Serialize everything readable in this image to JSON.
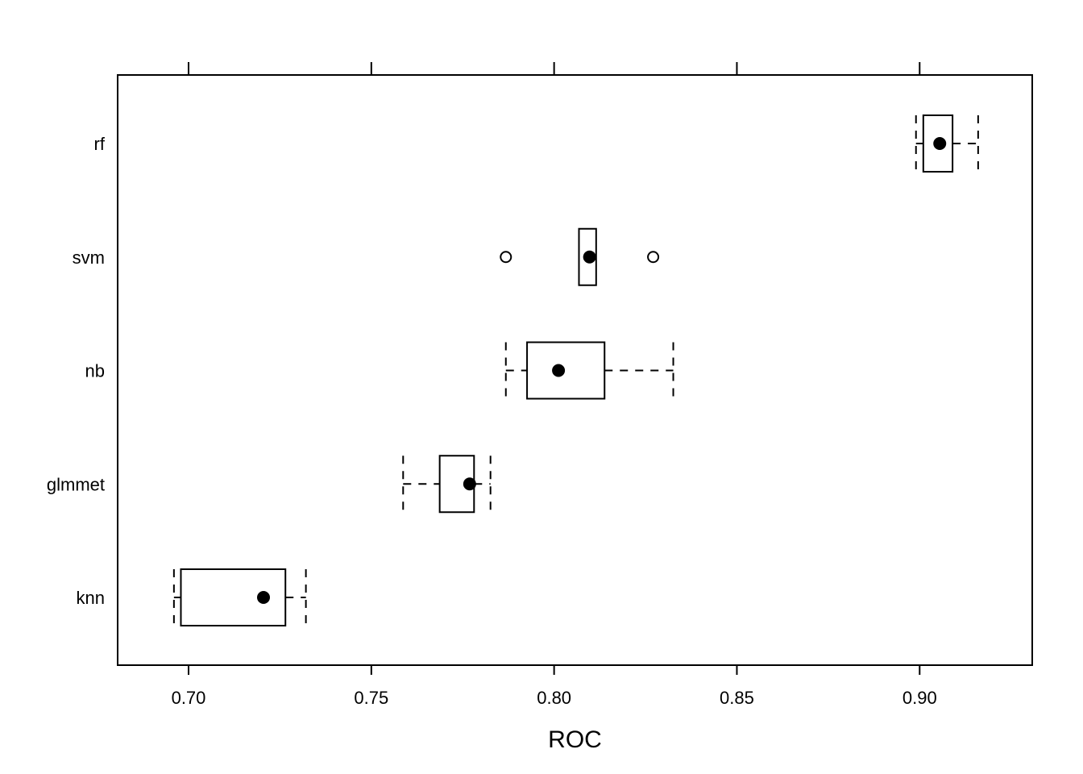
{
  "chart_data": {
    "type": "box",
    "title": "",
    "xlabel": "ROC",
    "ylabel": "",
    "xlim": [
      0.6806,
      0.9308
    ],
    "x_ticks": [
      0.7,
      0.75,
      0.8,
      0.85,
      0.9
    ],
    "x_tick_labels": [
      "0.70",
      "0.75",
      "0.80",
      "0.85",
      "0.90"
    ],
    "categories": [
      "rf",
      "svm",
      "nb",
      "glmmet",
      "knn"
    ],
    "boxes": [
      {
        "name": "rf",
        "whisker_low": 0.899,
        "q1": 0.901,
        "median": 0.9055,
        "q3": 0.909,
        "whisker_high": 0.916,
        "outliers": []
      },
      {
        "name": "svm",
        "whisker_low": 0.8068,
        "q1": 0.8068,
        "median": 0.8097,
        "q3": 0.8115,
        "whisker_high": 0.8115,
        "outliers": [
          0.7868,
          0.8271
        ]
      },
      {
        "name": "nb",
        "whisker_low": 0.7868,
        "q1": 0.7926,
        "median": 0.8012,
        "q3": 0.8138,
        "whisker_high": 0.8326,
        "outliers": []
      },
      {
        "name": "glmmet",
        "whisker_low": 0.7587,
        "q1": 0.7687,
        "median": 0.7769,
        "q3": 0.7781,
        "whisker_high": 0.7826,
        "outliers": []
      },
      {
        "name": "knn",
        "whisker_low": 0.696,
        "q1": 0.6979,
        "median": 0.7205,
        "q3": 0.7265,
        "whisker_high": 0.7321,
        "outliers": []
      }
    ],
    "grid": false,
    "ticks_on_top": true,
    "colors": {
      "box": "#000000",
      "median": "#000000",
      "background": "#ffffff"
    }
  }
}
